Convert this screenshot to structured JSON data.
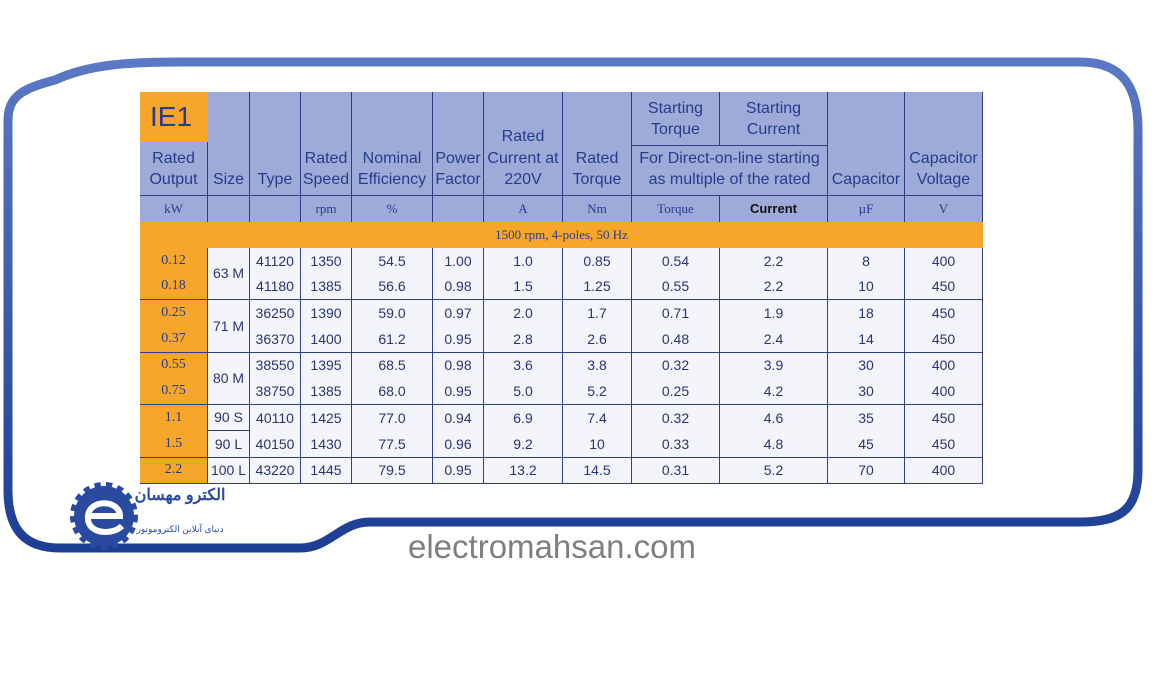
{
  "header": {
    "badge": "IE1",
    "columns": [
      {
        "title": "Rated Output",
        "unit": "kW"
      },
      {
        "title": "Size"
      },
      {
        "title": "Type"
      },
      {
        "title": "Rated Speed",
        "unit": "rpm"
      },
      {
        "title": "Nominal Efficiency",
        "unit": "%"
      },
      {
        "title": "Power Factor"
      },
      {
        "title": "Rated Current at 220V",
        "unit": "A"
      },
      {
        "title": "Rated Torque",
        "unit": "Nm"
      },
      {
        "title": "Starting Torque",
        "unit": "Torque"
      },
      {
        "title": "Starting Current",
        "unit": "Current"
      },
      {
        "title": "Capacitor",
        "unit": "µF"
      },
      {
        "title": "Capacitor Voltage",
        "unit": "V"
      }
    ],
    "group_note": "For Direct-on-line starting as multiple of the rated"
  },
  "section": "1500 rpm, 4-poles, 50 Hz",
  "rows": [
    [
      "0.12",
      "63 M",
      "41120",
      "1350",
      "54.5",
      "1.00",
      "1.0",
      "0.85",
      "0.54",
      "2.2",
      "8",
      "400"
    ],
    [
      "0.18",
      null,
      "41180",
      "1385",
      "56.6",
      "0.98",
      "1.5",
      "1.25",
      "0.55",
      "2.2",
      "10",
      "450"
    ],
    [
      "0.25",
      "71 M",
      "36250",
      "1390",
      "59.0",
      "0.97",
      "2.0",
      "1.7",
      "0.71",
      "1.9",
      "18",
      "450"
    ],
    [
      "0.37",
      null,
      "36370",
      "1400",
      "61.2",
      "0.95",
      "2.8",
      "2.6",
      "0.48",
      "2.4",
      "14",
      "450"
    ],
    [
      "0.55",
      "80 M",
      "38550",
      "1395",
      "68.5",
      "0.98",
      "3.6",
      "3.8",
      "0.32",
      "3.9",
      "30",
      "400"
    ],
    [
      "0.75",
      null,
      "38750",
      "1385",
      "68.0",
      "0.95",
      "5.0",
      "5.2",
      "0.25",
      "4.2",
      "30",
      "400"
    ],
    [
      "1.1",
      "90 S",
      "40110",
      "1425",
      "77.0",
      "0.94",
      "6.9",
      "7.4",
      "0.32",
      "4.6",
      "35",
      "450"
    ],
    [
      "1.5",
      "90 L",
      "40150",
      "1430",
      "77.5",
      "0.96",
      "9.2",
      "10",
      "0.33",
      "4.8",
      "45",
      "450"
    ],
    [
      "2.2",
      "100 L",
      "43220",
      "1445",
      "79.5",
      "0.95",
      "13.2",
      "14.5",
      "0.31",
      "5.2",
      "70",
      "400"
    ]
  ],
  "logo": {
    "title": "الکترو مهسان",
    "subtitle": "دنیای آنلاین الکتروموتور"
  },
  "website": "electromahsan.com"
}
